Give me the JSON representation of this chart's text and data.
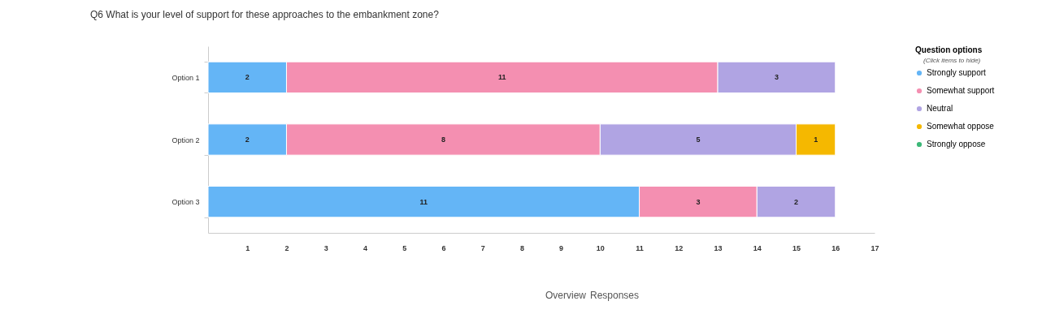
{
  "chart_data": {
    "type": "bar",
    "orientation": "horizontal",
    "stacked": true,
    "title": "Q6 What is your level of support for these approaches to the embankment zone?",
    "categories": [
      "Option 1",
      "Option 2",
      "Option 3"
    ],
    "series": [
      {
        "name": "Strongly support",
        "color": "#64b5f6",
        "values": [
          2,
          2,
          11
        ]
      },
      {
        "name": "Somewhat support",
        "color": "#f48fb1",
        "values": [
          11,
          8,
          3
        ]
      },
      {
        "name": "Neutral",
        "color": "#b0a4e3",
        "values": [
          3,
          5,
          2
        ]
      },
      {
        "name": "Somewhat oppose",
        "color": "#f5b800",
        "values": [
          null,
          1,
          null
        ]
      },
      {
        "name": "Strongly oppose",
        "color": "#3cb878",
        "values": [
          null,
          null,
          null
        ]
      }
    ],
    "xlim": [
      0,
      17
    ],
    "xticks": [
      1,
      2,
      3,
      4,
      5,
      6,
      7,
      8,
      9,
      10,
      11,
      12,
      13,
      14,
      15,
      16,
      17
    ],
    "data_labels": true,
    "grid": false,
    "legend": "right",
    "legend_title": "Question options",
    "annotations": [
      "(Click items to hide)",
      "Overview",
      "Responses"
    ]
  }
}
